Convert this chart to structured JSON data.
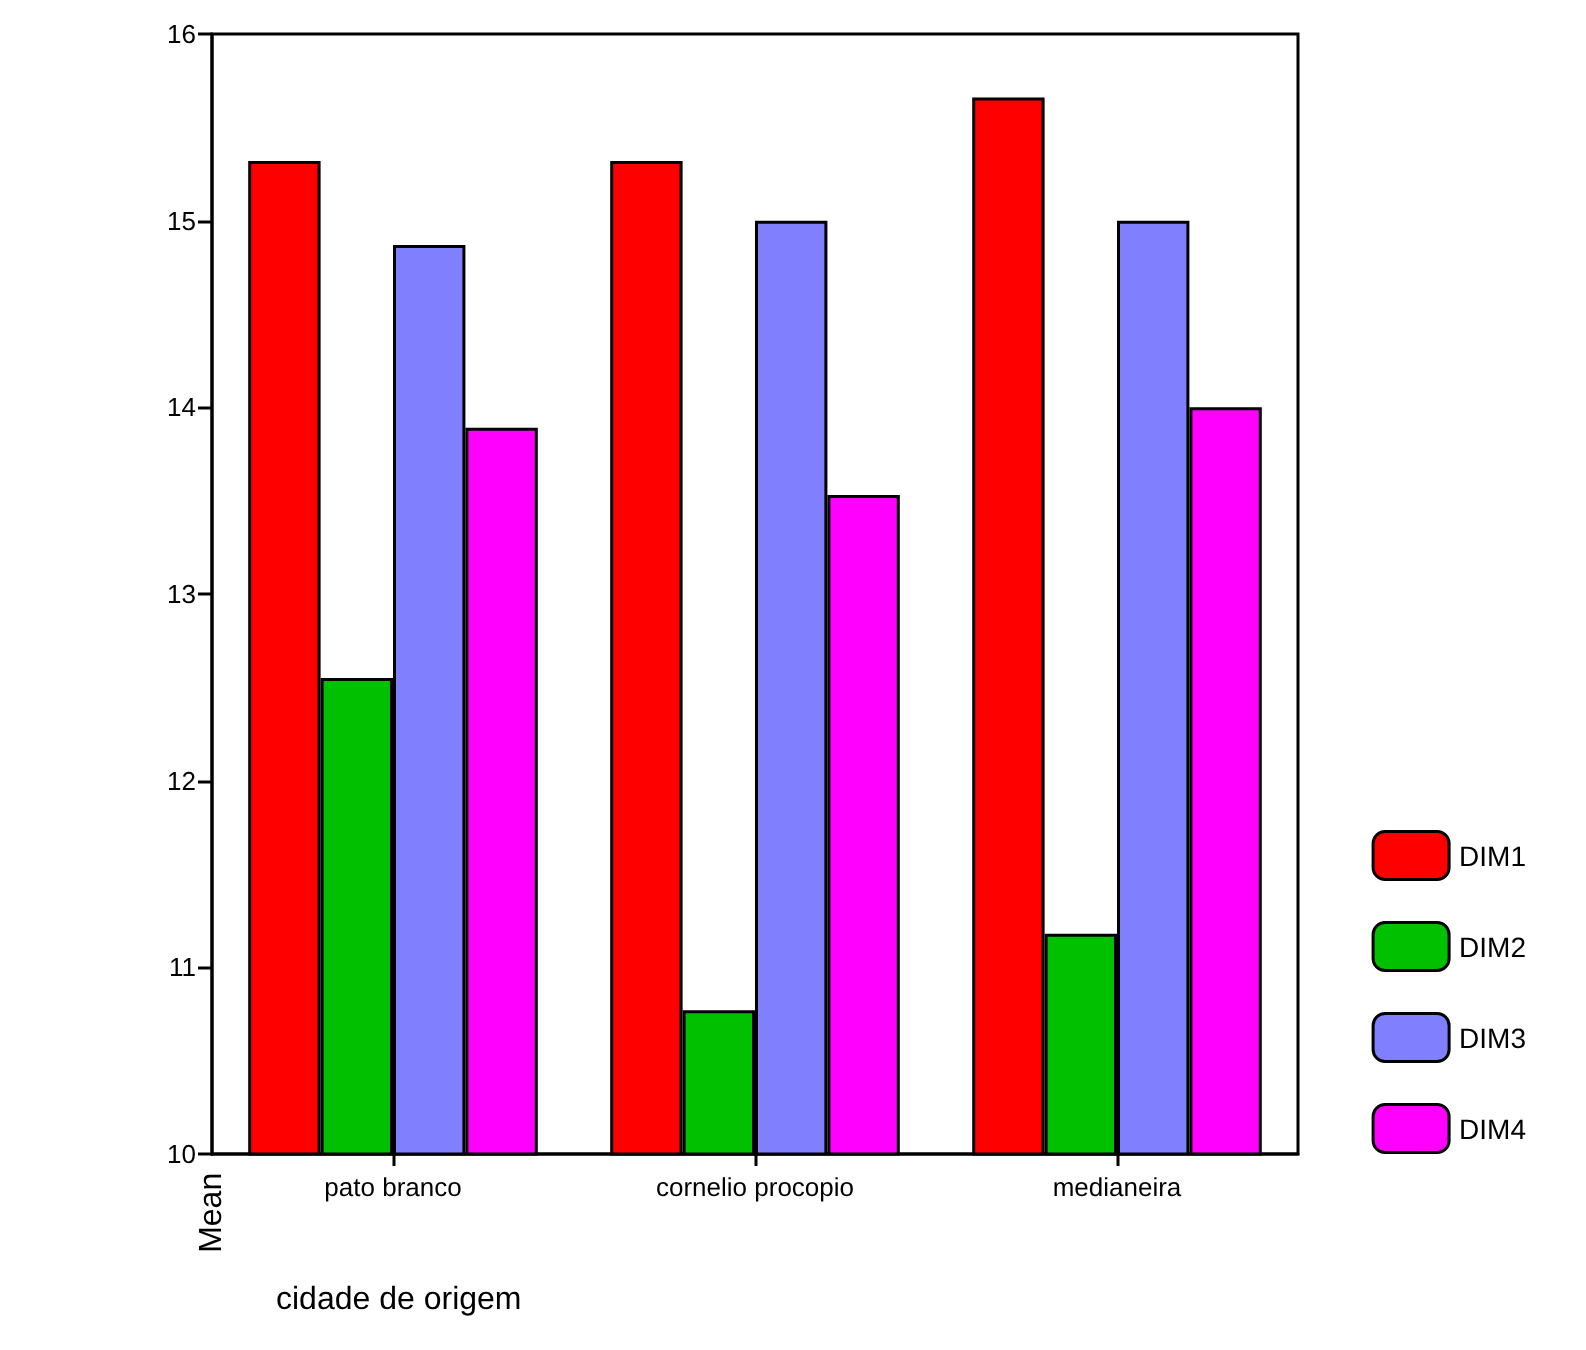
{
  "chart_data": {
    "type": "bar",
    "xlabel": "cidade de origem",
    "ylabel": "Mean",
    "categories": [
      "pato branco",
      "cornelio procopio",
      "medianeira"
    ],
    "series": [
      {
        "name": "DIM1",
        "color": "#ff0000",
        "values": [
          15.32,
          15.32,
          15.66
        ]
      },
      {
        "name": "DIM2",
        "color": "#00c000",
        "values": [
          12.55,
          10.77,
          11.18
        ]
      },
      {
        "name": "DIM3",
        "color": "#8080ff",
        "values": [
          14.87,
          15.0,
          15.0
        ]
      },
      {
        "name": "DIM4",
        "color": "#ff00ff",
        "values": [
          13.89,
          13.53,
          14.0
        ]
      }
    ],
    "ylim": [
      10,
      16
    ],
    "yticks": [
      10,
      11,
      12,
      13,
      14,
      15,
      16
    ],
    "grid": false,
    "legend": "right"
  }
}
